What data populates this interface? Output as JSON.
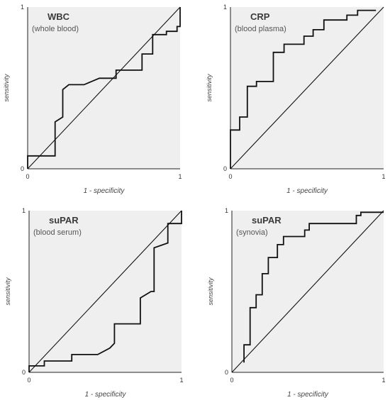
{
  "chart_data": [
    {
      "type": "line",
      "title": "WBC",
      "subtitle": "(whole blood)",
      "xlabel": "1 - specificity",
      "ylabel": "sensitivity",
      "xlim": [
        0,
        1
      ],
      "ylim": [
        0,
        1
      ],
      "x_ticks": [
        "0",
        "1"
      ],
      "y_ticks": [
        "0",
        "1"
      ],
      "series": [
        {
          "x": [
            0,
            0,
            0.18,
            0.18,
            0.23,
            0.23,
            0.27,
            0.37,
            0.47,
            0.58,
            0.58,
            0.75,
            0.75,
            0.82,
            0.82,
            0.91,
            0.91,
            0.98,
            0.98,
            1.0,
            1.0
          ],
          "y": [
            0,
            0.08,
            0.08,
            0.29,
            0.32,
            0.49,
            0.52,
            0.52,
            0.56,
            0.56,
            0.61,
            0.61,
            0.71,
            0.71,
            0.83,
            0.83,
            0.85,
            0.85,
            0.88,
            0.88,
            1.0
          ]
        },
        {
          "x": [
            0,
            1
          ],
          "y": [
            0,
            1
          ]
        }
      ]
    },
    {
      "type": "line",
      "title": "CRP",
      "subtitle": "(blood plasma)",
      "xlabel": "1 - specificity",
      "ylabel": "sensitivity",
      "xlim": [
        0,
        1
      ],
      "ylim": [
        0,
        1
      ],
      "x_ticks": [
        "0",
        "1"
      ],
      "y_ticks": [
        "0",
        "1"
      ],
      "series": [
        {
          "x": [
            0,
            0,
            0.06,
            0.06,
            0.11,
            0.11,
            0.17,
            0.17,
            0.28,
            0.28,
            0.35,
            0.35,
            0.48,
            0.48,
            0.54,
            0.54,
            0.61,
            0.61,
            0.76,
            0.76,
            0.83,
            0.83,
            0.95
          ],
          "y": [
            0,
            0.24,
            0.24,
            0.32,
            0.32,
            0.51,
            0.51,
            0.54,
            0.54,
            0.72,
            0.72,
            0.77,
            0.77,
            0.82,
            0.82,
            0.86,
            0.86,
            0.92,
            0.92,
            0.95,
            0.95,
            0.98,
            0.98
          ]
        },
        {
          "x": [
            0,
            1
          ],
          "y": [
            0,
            1
          ]
        }
      ]
    },
    {
      "type": "line",
      "title": "suPAR",
      "subtitle": "(blood serum)",
      "xlabel": "1 - specificity",
      "ylabel": "sensitivity",
      "xlim": [
        0,
        1
      ],
      "ylim": [
        0,
        1
      ],
      "x_ticks": [
        "0",
        "1"
      ],
      "y_ticks": [
        "0",
        "1"
      ],
      "series": [
        {
          "x": [
            0,
            0,
            0.1,
            0.1,
            0.28,
            0.28,
            0.45,
            0.53,
            0.56,
            0.56,
            0.73,
            0.73,
            0.8,
            0.82,
            0.82,
            0.91,
            0.91,
            1.0,
            1.0
          ],
          "y": [
            0,
            0.04,
            0.04,
            0.07,
            0.07,
            0.11,
            0.11,
            0.15,
            0.18,
            0.3,
            0.3,
            0.46,
            0.5,
            0.5,
            0.77,
            0.8,
            0.92,
            0.92,
            1.0
          ]
        },
        {
          "x": [
            0,
            1
          ],
          "y": [
            0,
            1
          ]
        }
      ]
    },
    {
      "type": "line",
      "title": "suPAR",
      "subtitle": "(synovia)",
      "xlabel": "1 - specificity",
      "ylabel": "sensitivity",
      "xlim": [
        0,
        1
      ],
      "ylim": [
        0,
        1
      ],
      "x_ticks": [
        "0",
        "1"
      ],
      "y_ticks": [
        "0",
        "1"
      ],
      "series": [
        {
          "x": [
            0.08,
            0.08,
            0.12,
            0.12,
            0.16,
            0.16,
            0.2,
            0.2,
            0.24,
            0.24,
            0.3,
            0.3,
            0.34,
            0.34,
            0.48,
            0.48,
            0.51,
            0.51,
            0.82,
            0.82,
            0.85,
            0.85,
            1.0
          ],
          "y": [
            0.06,
            0.17,
            0.17,
            0.4,
            0.4,
            0.48,
            0.48,
            0.61,
            0.61,
            0.71,
            0.71,
            0.79,
            0.79,
            0.84,
            0.84,
            0.88,
            0.88,
            0.92,
            0.92,
            0.97,
            0.97,
            0.99,
            0.99
          ]
        },
        {
          "x": [
            0,
            1
          ],
          "y": [
            0,
            1
          ]
        }
      ]
    }
  ]
}
